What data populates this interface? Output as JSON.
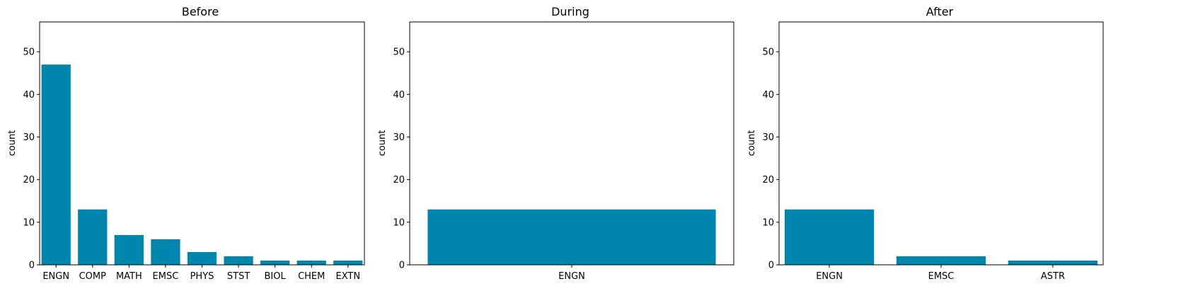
{
  "chart_data": [
    {
      "type": "bar",
      "title": "Before",
      "xlabel": "",
      "ylabel": "count",
      "ylim": [
        0,
        57
      ],
      "yticks": [
        0,
        10,
        20,
        30,
        40,
        50
      ],
      "categories": [
        "ENGN",
        "COMP",
        "MATH",
        "EMSC",
        "PHYS",
        "STST",
        "BIOL",
        "CHEM",
        "EXTN"
      ],
      "values": [
        47,
        13,
        7,
        6,
        3,
        2,
        1,
        1,
        1
      ],
      "bar_color": "#0086ad",
      "grid": false
    },
    {
      "type": "bar",
      "title": "During",
      "xlabel": "",
      "ylabel": "count",
      "ylim": [
        0,
        57
      ],
      "yticks": [
        0,
        10,
        20,
        30,
        40,
        50
      ],
      "categories": [
        "ENGN"
      ],
      "values": [
        13
      ],
      "bar_color": "#0086ad",
      "grid": false
    },
    {
      "type": "bar",
      "title": "After",
      "xlabel": "",
      "ylabel": "count",
      "ylim": [
        0,
        57
      ],
      "yticks": [
        0,
        10,
        20,
        30,
        40,
        50
      ],
      "categories": [
        "ENGN",
        "EMSC",
        "ASTR"
      ],
      "values": [
        13,
        2,
        1
      ],
      "bar_color": "#0086ad",
      "grid": false
    }
  ]
}
